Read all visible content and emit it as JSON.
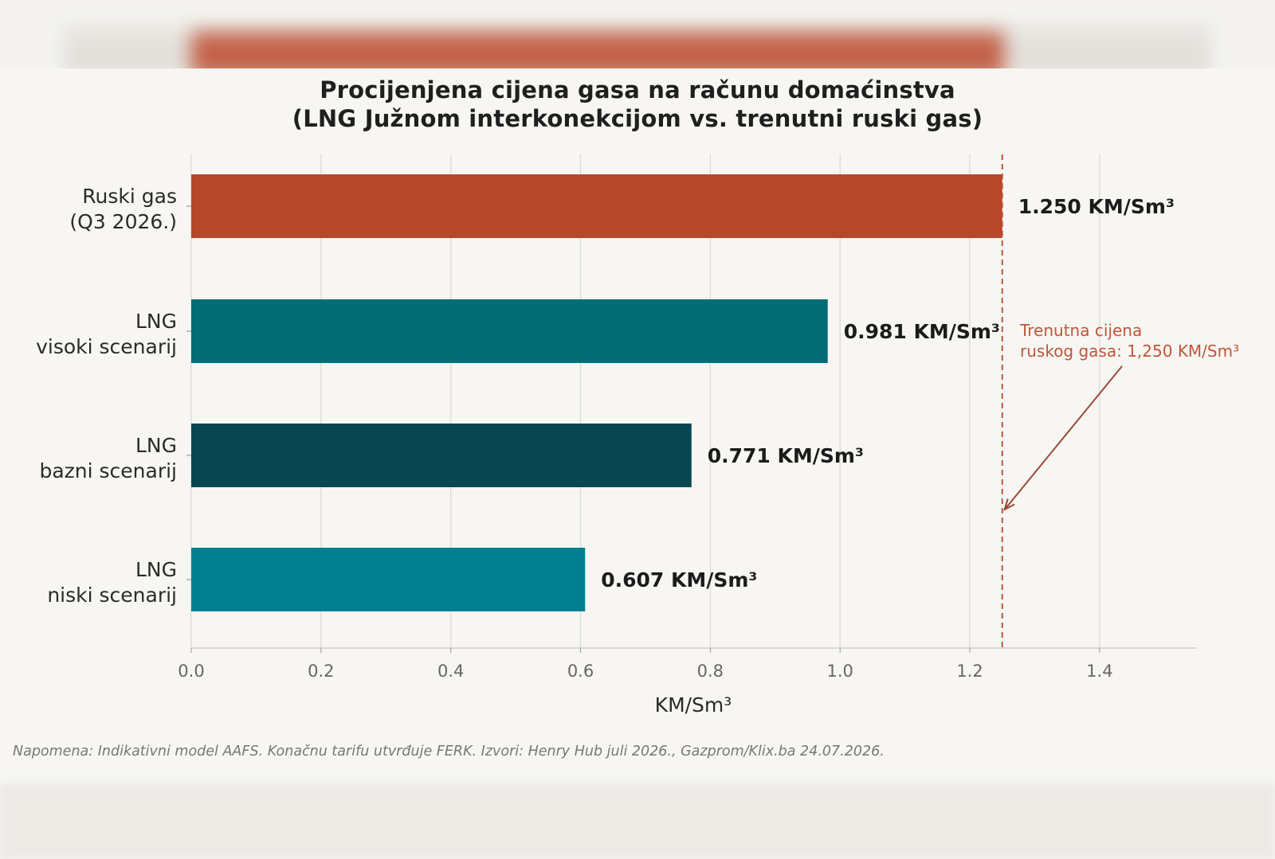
{
  "chart_data": {
    "type": "bar",
    "orientation": "horizontal",
    "title_lines": [
      "Procijenjena cijena gasa na računu domaćinstva",
      "(LNG Južnom interkonekcijom vs. trenutni ruski gas)"
    ],
    "xlabel": "KM/Sm³",
    "xlim": [
      0,
      1.55
    ],
    "xticks": [
      0.0,
      0.2,
      0.4,
      0.6,
      0.8,
      1.0,
      1.2,
      1.4
    ],
    "xtick_labels": [
      "0.0",
      "0.2",
      "0.4",
      "0.6",
      "0.8",
      "1.0",
      "1.2",
      "1.4"
    ],
    "grid": "vertical",
    "categories": [
      {
        "lines": [
          "Ruski gas",
          "(Q3 2026.)"
        ],
        "value": 1.25,
        "label": "1.250 KM/Sm³",
        "color": "#b5472a"
      },
      {
        "lines": [
          "LNG",
          "visoki scenarij"
        ],
        "value": 0.981,
        "label": "0.981 KM/Sm³",
        "color": "#036c74"
      },
      {
        "lines": [
          "LNG",
          "bazni scenarij"
        ],
        "value": 0.771,
        "label": "0.771 KM/Sm³",
        "color": "#0a4650"
      },
      {
        "lines": [
          "LNG",
          "niski scenarij"
        ],
        "value": 0.607,
        "label": "0.607 KM/Sm³",
        "color": "#007f91"
      }
    ],
    "reference_line": {
      "value": 1.25,
      "color": "#c0553a",
      "style": "dashed",
      "annotation_lines": [
        "Trenutna cijena",
        "ruskog gasa: 1,250 KM/Sm³"
      ]
    }
  },
  "footnote": "Napomena: Indikativni model AAFS. Konačnu tarifu utvrđuje FERK. Izvori: Henry Hub juli 2026., Gazprom/Klix.ba 24.07.2026."
}
